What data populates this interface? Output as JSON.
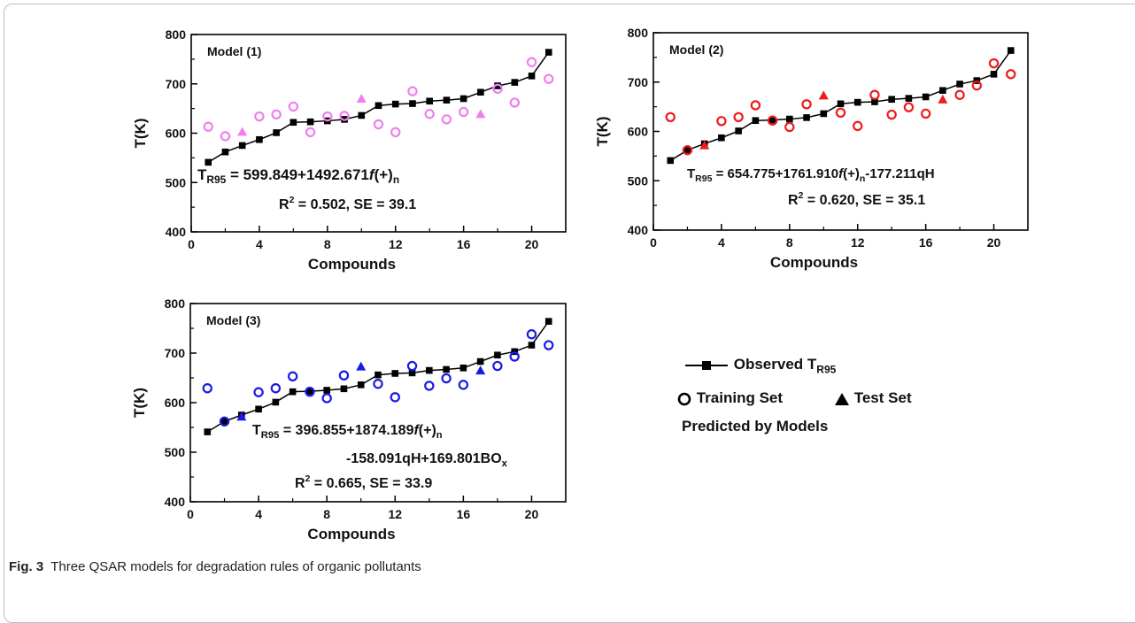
{
  "caption": {
    "label": "Fig. 3",
    "text": "Three QSAR models for degradation rules of organic pollutants"
  },
  "legend": {
    "observed_prefix": "Observed T",
    "observed_sub": "R95",
    "training": "Training Set",
    "test": "Test Set",
    "predicted": "Predicted by Models",
    "observed_color": "#000000"
  },
  "chart_data": [
    {
      "type": "scatter",
      "title": "Model (1)",
      "xlabel": "Compounds",
      "ylabel": "T(K)",
      "xlim": [
        0,
        22
      ],
      "ylim": [
        400,
        800
      ],
      "xticks": [
        0,
        4,
        8,
        12,
        16,
        20
      ],
      "yticks": [
        400,
        500,
        600,
        700,
        800
      ],
      "color": "#f07ef0",
      "equation": {
        "lhs": "T",
        "sub": "R95",
        "rhs": "= 599.849+1492.671",
        "fn": "f",
        "tail": "(+)",
        "tail_sub": "n"
      },
      "lines": [
        "R² = 0.502, SE = 39.1"
      ],
      "series": [
        {
          "name": "Observed T R95",
          "x": [
            1,
            2,
            3,
            4,
            5,
            6,
            7,
            8,
            9,
            10,
            11,
            12,
            13,
            14,
            15,
            16,
            17,
            18,
            19,
            20,
            21
          ],
          "y": [
            541,
            562,
            575,
            587,
            601,
            622,
            623,
            625,
            628,
            636,
            656,
            659,
            660,
            665,
            667,
            670,
            683,
            696,
            703,
            716,
            764
          ]
        },
        {
          "name": "Training Set",
          "x": [
            1,
            2,
            4,
            5,
            6,
            7,
            8,
            9,
            11,
            12,
            13,
            14,
            15,
            16,
            18,
            19,
            20,
            21
          ],
          "y": [
            613,
            594,
            634,
            638,
            654,
            602,
            634,
            635,
            618,
            602,
            685,
            639,
            628,
            643,
            690,
            662,
            744,
            710
          ]
        },
        {
          "name": "Test Set",
          "x": [
            3,
            10,
            17
          ],
          "y": [
            602,
            669,
            638
          ]
        }
      ]
    },
    {
      "type": "scatter",
      "title": "Model (2)",
      "xlabel": "Compounds",
      "ylabel": "T(K)",
      "xlim": [
        0,
        22
      ],
      "ylim": [
        400,
        800
      ],
      "xticks": [
        0,
        4,
        8,
        12,
        16,
        20
      ],
      "yticks": [
        400,
        500,
        600,
        700,
        800
      ],
      "color": "#ee1c1c",
      "equation": {
        "lhs": "T",
        "sub": "R95",
        "rhs": "= 654.775+1761.910",
        "fn": "f",
        "tail": "(+)",
        "tail_sub": "n",
        "tail2": "-177.211qH"
      },
      "lines": [
        "R² = 0.620, SE = 35.1"
      ],
      "series": [
        {
          "name": "Observed T R95",
          "x": [
            1,
            2,
            3,
            4,
            5,
            6,
            7,
            8,
            9,
            10,
            11,
            12,
            13,
            14,
            15,
            16,
            17,
            18,
            19,
            20,
            21
          ],
          "y": [
            541,
            562,
            575,
            587,
            601,
            622,
            623,
            625,
            628,
            636,
            656,
            659,
            660,
            665,
            667,
            670,
            683,
            696,
            703,
            716,
            764
          ]
        },
        {
          "name": "Training Set",
          "x": [
            1,
            2,
            4,
            5,
            6,
            7,
            8,
            9,
            11,
            12,
            13,
            14,
            15,
            16,
            18,
            19,
            20,
            21
          ],
          "y": [
            629,
            562,
            621,
            629,
            653,
            622,
            609,
            655,
            638,
            611,
            674,
            634,
            649,
            636,
            674,
            693,
            738,
            716
          ]
        },
        {
          "name": "Test Set",
          "x": [
            3,
            10,
            17
          ],
          "y": [
            571,
            672,
            664
          ]
        }
      ]
    },
    {
      "type": "scatter",
      "title": "Model (3)",
      "xlabel": "Compounds",
      "ylabel": "T(K)",
      "xlim": [
        0,
        22
      ],
      "ylim": [
        400,
        800
      ],
      "xticks": [
        0,
        4,
        8,
        12,
        16,
        20
      ],
      "yticks": [
        400,
        500,
        600,
        700,
        800
      ],
      "color": "#1a1ae6",
      "equation": {
        "lhs": "T",
        "sub": "R95",
        "rhs": "= 396.855+1874.189",
        "fn": "f",
        "tail": "(+)",
        "tail_sub": "n"
      },
      "equation_line2": {
        "text": "-158.091qH+169.801BO",
        "sub": "x"
      },
      "lines": [
        "R² = 0.665, SE = 33.9"
      ],
      "series": [
        {
          "name": "Observed T R95",
          "x": [
            1,
            2,
            3,
            4,
            5,
            6,
            7,
            8,
            9,
            10,
            11,
            12,
            13,
            14,
            15,
            16,
            17,
            18,
            19,
            20,
            21
          ],
          "y": [
            541,
            562,
            575,
            587,
            601,
            622,
            623,
            625,
            628,
            636,
            656,
            659,
            660,
            665,
            667,
            670,
            683,
            696,
            703,
            716,
            764
          ]
        },
        {
          "name": "Training Set",
          "x": [
            1,
            2,
            4,
            5,
            6,
            7,
            8,
            9,
            11,
            12,
            13,
            14,
            15,
            16,
            18,
            19,
            20,
            21
          ],
          "y": [
            629,
            562,
            621,
            629,
            653,
            622,
            609,
            655,
            638,
            611,
            674,
            634,
            649,
            636,
            674,
            693,
            738,
            716
          ]
        },
        {
          "name": "Test Set",
          "x": [
            3,
            10,
            17
          ],
          "y": [
            571,
            672,
            664
          ]
        }
      ]
    }
  ]
}
